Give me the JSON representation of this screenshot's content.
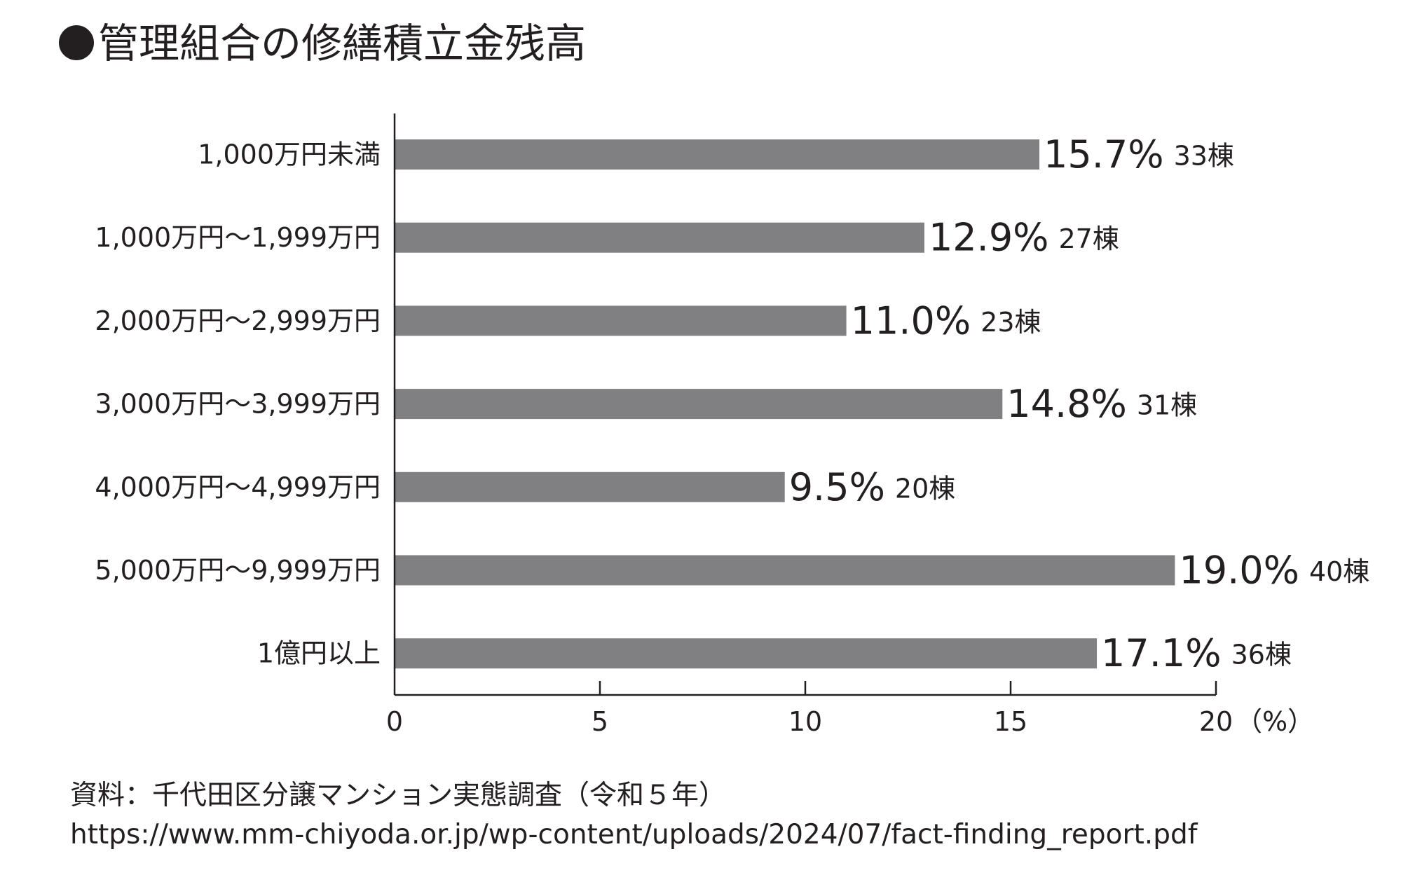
{
  "title": "管理組合の修繕積立金残高",
  "chart_data": {
    "type": "bar",
    "orientation": "horizontal",
    "categories": [
      "1,000万円未満",
      "1,000万円〜1,999万円",
      "2,000万円〜2,999万円",
      "3,000万円〜3,999万円",
      "4,000万円〜4,999万円",
      "5,000万円〜9,999万円",
      "1億円以上"
    ],
    "values": [
      15.7,
      12.9,
      11.0,
      14.8,
      9.5,
      19.0,
      17.1
    ],
    "value_labels": [
      "15.7%",
      "12.9%",
      "11.0%",
      "14.8%",
      "9.5%",
      "19.0%",
      "17.1%"
    ],
    "count_labels": [
      "33棟",
      "27棟",
      "23棟",
      "31棟",
      "20棟",
      "40棟",
      "36棟"
    ],
    "xlim": [
      0,
      20
    ],
    "xticks": [
      0,
      5,
      10,
      15,
      20
    ],
    "x_unit": "（%）",
    "bar_color": "#808083",
    "grid": false
  },
  "source": {
    "line1": "資料：千代田区分譲マンション実態調査（令和５年）",
    "line2": "https://www.mm-chiyoda.or.jp/wp-content/uploads/2024/07/fact-finding_report.pdf"
  }
}
